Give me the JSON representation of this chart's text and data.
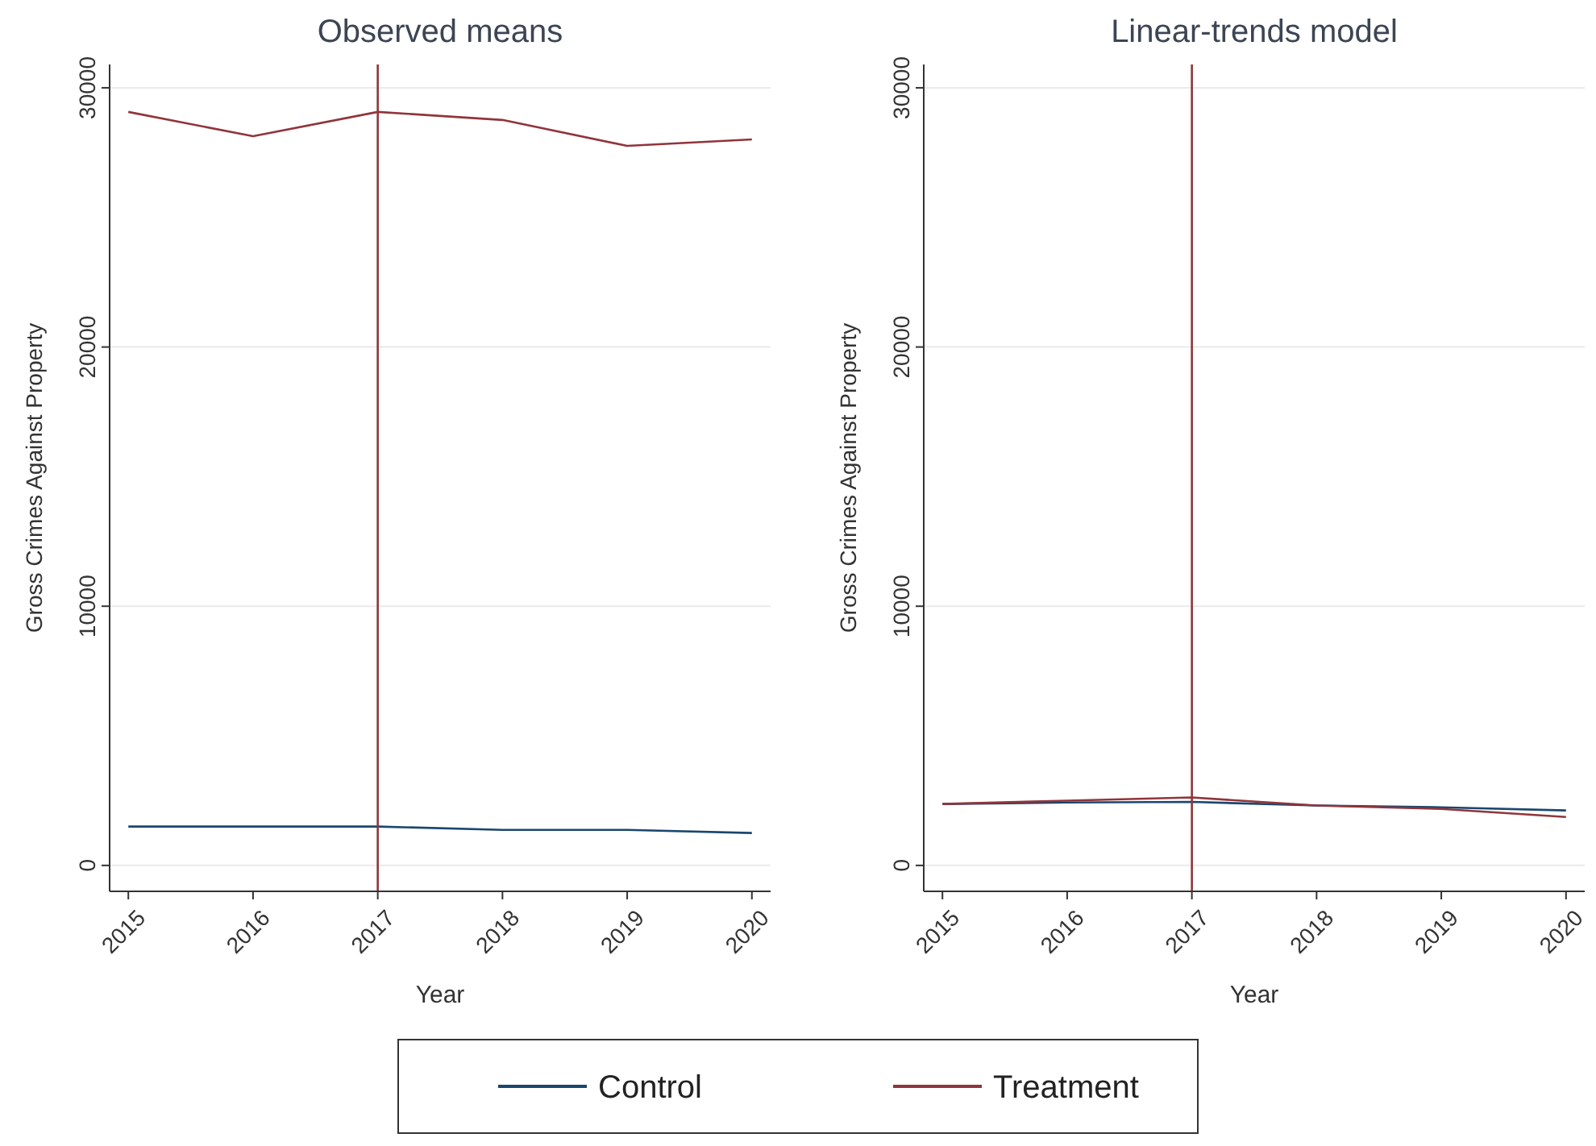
{
  "chart_data": [
    {
      "type": "line",
      "title": "Observed means",
      "xlabel": "Year",
      "ylabel": "Gross Crimes Against Property",
      "x": [
        2015,
        2016,
        2017,
        2018,
        2019,
        2020
      ],
      "xlim": [
        2014.85,
        2020.15
      ],
      "xticks": [
        2015,
        2016,
        2017,
        2018,
        2019,
        2020
      ],
      "ylim": [
        -1000,
        30900
      ],
      "yticks": [
        0,
        10000,
        20000,
        30000
      ],
      "grid": "y",
      "legend": "bottom",
      "series": [
        {
          "name": "Control",
          "color": "#1a476f",
          "values": [
            1500,
            1500,
            1500,
            1370,
            1370,
            1250
          ]
        },
        {
          "name": "Treatment",
          "color": "#90353b",
          "values": [
            29070,
            28130,
            29070,
            28760,
            27760,
            28010
          ]
        }
      ],
      "ref_lines": [
        {
          "axis": "x",
          "value": 2017,
          "color": "#90353b"
        }
      ]
    },
    {
      "type": "line",
      "title": "Linear-trends model",
      "xlabel": "Year",
      "ylabel": "Gross Crimes Against Property",
      "x": [
        2015,
        2016,
        2017,
        2018,
        2019,
        2020
      ],
      "xlim": [
        2014.85,
        2020.15
      ],
      "xticks": [
        2015,
        2016,
        2017,
        2018,
        2019,
        2020
      ],
      "ylim": [
        -1000,
        30900
      ],
      "yticks": [
        0,
        10000,
        20000,
        30000
      ],
      "grid": "y",
      "series": [
        {
          "color": "#1a476f",
          "values": [
            2370,
            2430,
            2450,
            2310,
            2240,
            2120
          ]
        },
        {
          "color": "#90353b",
          "values": [
            2370,
            2500,
            2620,
            2310,
            2180,
            1870
          ]
        }
      ],
      "ref_lines": [
        {
          "axis": "x",
          "value": 2017,
          "color": "#90353b"
        }
      ]
    }
  ]
}
